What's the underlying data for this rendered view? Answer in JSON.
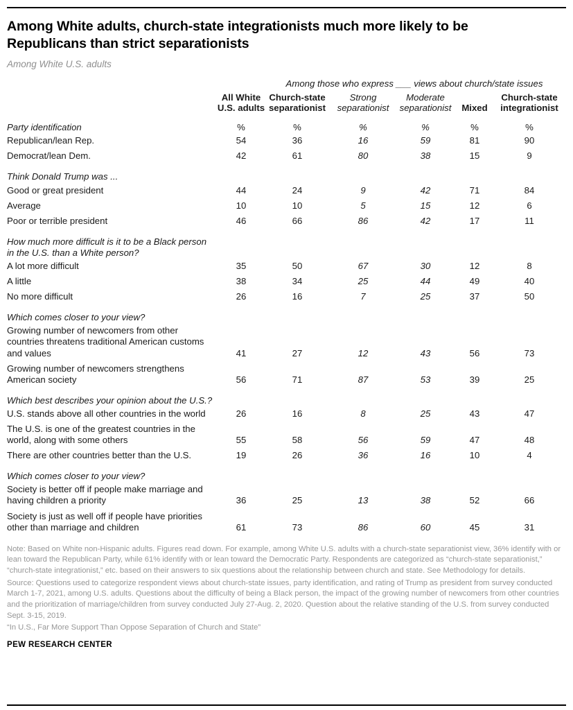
{
  "chart_data": {
    "type": "table",
    "title": "Among White adults, church-state integrationists much more likely to be Republicans than strict separationists",
    "subtitle": "Among White U.S. adults",
    "group_header": "Among those who express ___ views about church/state issues",
    "unit": "%",
    "columns": [
      {
        "label": "All White U.S. adults",
        "emphasis": "bold"
      },
      {
        "label": "Church-state separationist",
        "emphasis": "bold"
      },
      {
        "label": "Strong separationist",
        "emphasis": "italic"
      },
      {
        "label": "Moderate separationist",
        "emphasis": "italic"
      },
      {
        "label": "Mixed",
        "emphasis": "bold"
      },
      {
        "label": "Church-state integrationist",
        "emphasis": "bold"
      }
    ],
    "sections": [
      {
        "header": "Party identification",
        "show_units": true,
        "rows": [
          {
            "label": "Republican/lean Rep.",
            "values": [
              "54",
              "36",
              "16",
              "59",
              "81",
              "90"
            ]
          },
          {
            "label": "Democrat/lean Dem.",
            "values": [
              "42",
              "61",
              "80",
              "38",
              "15",
              "9"
            ]
          }
        ]
      },
      {
        "header": "Think Donald Trump was ...",
        "show_units": false,
        "rows": [
          {
            "label": "Good or great president",
            "values": [
              "44",
              "24",
              "9",
              "42",
              "71",
              "84"
            ]
          },
          {
            "label": "Average",
            "values": [
              "10",
              "10",
              "5",
              "15",
              "12",
              "6"
            ]
          },
          {
            "label": "Poor or terrible president",
            "values": [
              "46",
              "66",
              "86",
              "42",
              "17",
              "11"
            ]
          }
        ]
      },
      {
        "header": "How much more difficult is it to be a Black person in the U.S. than a White person?",
        "show_units": false,
        "rows": [
          {
            "label": "A lot more difficult",
            "values": [
              "35",
              "50",
              "67",
              "30",
              "12",
              "8"
            ]
          },
          {
            "label": "A little",
            "values": [
              "38",
              "34",
              "25",
              "44",
              "49",
              "40"
            ]
          },
          {
            "label": "No more difficult",
            "values": [
              "26",
              "16",
              "7",
              "25",
              "37",
              "50"
            ]
          }
        ]
      },
      {
        "header": "Which comes closer to your view?",
        "show_units": false,
        "rows": [
          {
            "label": "Growing number of newcomers from other countries threatens traditional American customs and values",
            "values": [
              "41",
              "27",
              "12",
              "43",
              "56",
              "73"
            ]
          },
          {
            "label": "Growing number of newcomers strengthens American society",
            "values": [
              "56",
              "71",
              "87",
              "53",
              "39",
              "25"
            ]
          }
        ]
      },
      {
        "header": "Which best describes your opinion about the U.S.?",
        "show_units": false,
        "rows": [
          {
            "label": "U.S. stands above all other countries in the world",
            "values": [
              "26",
              "16",
              "8",
              "25",
              "43",
              "47"
            ]
          },
          {
            "label": "The U.S. is one of the greatest countries in the world, along with some others",
            "values": [
              "55",
              "58",
              "56",
              "59",
              "47",
              "48"
            ]
          },
          {
            "label": "There are other countries better than the U.S.",
            "values": [
              "19",
              "26",
              "36",
              "16",
              "10",
              "4"
            ]
          }
        ]
      },
      {
        "header": "Which comes closer to your view?",
        "show_units": false,
        "rows": [
          {
            "label": "Society is better off if people make marriage and having children a priority",
            "values": [
              "36",
              "25",
              "13",
              "38",
              "52",
              "66"
            ]
          },
          {
            "label": "Society is just as well off if people have priorities other than marriage and children",
            "values": [
              "61",
              "73",
              "86",
              "60",
              "45",
              "31"
            ]
          }
        ]
      }
    ]
  },
  "footer": {
    "note": "Note: Based on White non-Hispanic adults. Figures read down. For example, among White U.S. adults with a church-state separationist view, 36% identify with or lean toward the Republican Party, while 61% identify with or lean toward the Democratic Party. Respondents are categorized as “church-state separationist,” “church-state integrationist,” etc. based on their answers to six questions about the relationship between church and state. See Methodology for details.",
    "source": "Source: Questions used to categorize respondent views about church-state issues, party identification, and rating of Trump as president from survey conducted March 1-7, 2021, among U.S. adults. Questions about the difficulty of being a Black person, the impact of the growing number of newcomers from other countries and the prioritization of marriage/children from survey conducted July 27-Aug. 2, 2020. Question about the relative standing of the U.S. from survey conducted Sept. 3-15, 2019.",
    "report_title": "“In U.S., Far More Support Than Oppose Separation of Church and State”",
    "brand": "PEW RESEARCH CENTER"
  }
}
